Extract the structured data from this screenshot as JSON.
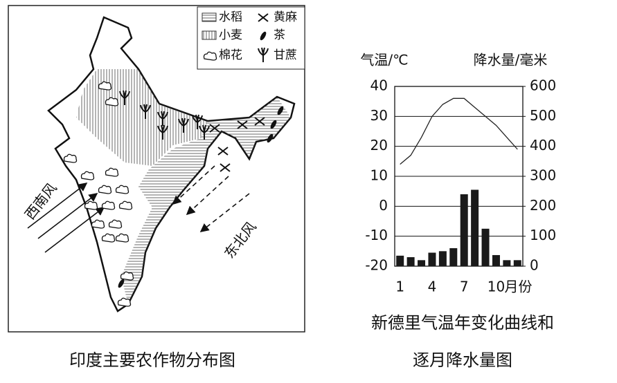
{
  "map": {
    "legend": [
      "水稻",
      "黄麻",
      "小麦",
      "茶",
      "棉花",
      "甘蔗"
    ],
    "winds": [
      "西南风",
      "东北风"
    ],
    "caption": "印度主要农作物分布图"
  },
  "chart_data": {
    "type": "combo",
    "title": [
      "新德里气温年变化曲线和",
      "逐月降水量图"
    ],
    "ylabel": "气温/℃",
    "y2label": "降水量/毫米",
    "xlabel": "月份",
    "categories": [
      "1",
      null,
      null,
      "4",
      null,
      null,
      "7",
      null,
      null,
      "10",
      null,
      null
    ],
    "series": [
      {
        "type": "line",
        "color": "#222",
        "values": [
          14,
          17,
          23,
          30,
          34,
          36,
          36,
          33,
          30,
          27,
          23,
          19
        ]
      },
      {
        "type": "bar",
        "axis": "y2",
        "color": "#1a1a1a",
        "values": [
          35,
          30,
          20,
          45,
          50,
          60,
          240,
          255,
          125,
          37,
          20,
          20
        ]
      }
    ],
    "ylim": [
      -20,
      40
    ],
    "yticks": [
      -20,
      -10,
      0,
      10,
      20,
      30,
      40
    ],
    "y2lim": [
      0,
      600
    ],
    "y2ticks": [
      0,
      100,
      200,
      300,
      400,
      500,
      600
    ],
    "grid": true
  }
}
